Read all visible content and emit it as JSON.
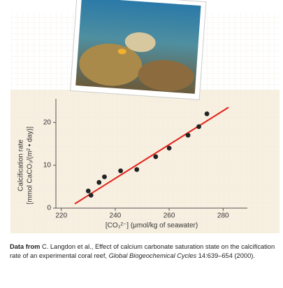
{
  "chart_data": {
    "type": "scatter",
    "ylabel_line1": "Calcification rate",
    "ylabel_line2": "[mmol CaCO₃/(m² • day)]",
    "xlabel": "[CO₃²⁻] (μmol/kg of seawater)",
    "x": [
      230,
      231,
      234,
      236,
      242,
      248,
      255,
      260,
      267,
      271,
      274
    ],
    "values": [
      4,
      3,
      6,
      7.3,
      8.7,
      9,
      12,
      14,
      17,
      19,
      22
    ],
    "color": "#222222",
    "fit": {
      "x": [
        225,
        282
      ],
      "values": [
        1,
        23.5
      ],
      "color": "#e32119"
    },
    "xlim": [
      218,
      289
    ],
    "ylim": [
      0,
      25.5
    ],
    "xticks": [
      220,
      240,
      260,
      280
    ],
    "yticks": [
      0,
      10,
      20
    ]
  },
  "caption": {
    "lead": "Data from",
    "text": " C. Langdon et al., Effect of calcium carbonate saturation state on the calcification rate of an experimental coral reef, ",
    "journal": "Global Biogeochemical Cycles",
    "tail": " 14:639–654 (2000)."
  }
}
